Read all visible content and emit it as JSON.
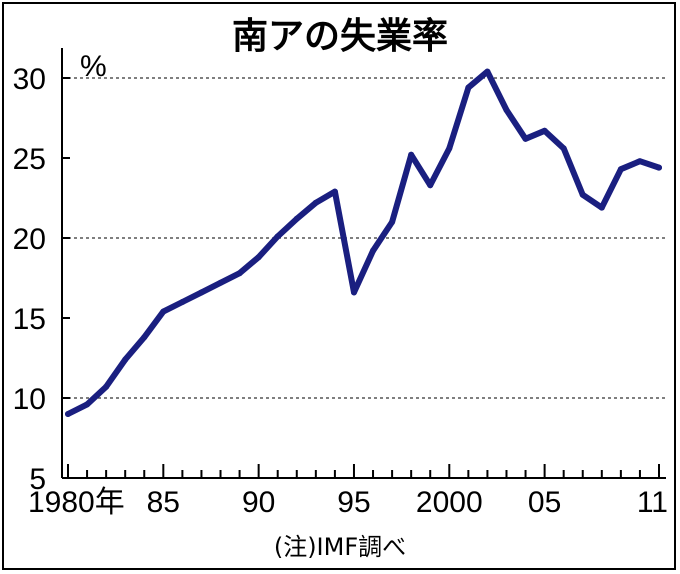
{
  "chart_data": {
    "type": "line",
    "title": "南アの失業率",
    "ylabel": "%",
    "source_note": "(注)IMF調べ",
    "ylim": [
      5,
      31
    ],
    "y_ticks": [
      5,
      10,
      15,
      20,
      25,
      30
    ],
    "y_gridlines": [
      10,
      20,
      30
    ],
    "x_tick_labels": [
      {
        "year": 1980,
        "label": "1980年"
      },
      {
        "year": 1985,
        "label": "85"
      },
      {
        "year": 1990,
        "label": "90"
      },
      {
        "year": 1995,
        "label": "95"
      },
      {
        "year": 2000,
        "label": "2000"
      },
      {
        "year": 2005,
        "label": "05"
      },
      {
        "year": 2011,
        "label": "11"
      }
    ],
    "x_minor_ticks": [
      1980,
      1981,
      1982,
      1983,
      1984,
      1985,
      1986,
      1987,
      1988,
      1989,
      1990,
      1991,
      1992,
      1993,
      1994,
      1995,
      1996,
      1997,
      1998,
      1999,
      2000,
      2001,
      2002,
      2003,
      2004,
      2005,
      2006,
      2007,
      2008,
      2009,
      2010,
      2011
    ],
    "line_color": "#1a1f80",
    "series": [
      {
        "x": [
          1980,
          1981,
          1982,
          1983,
          1984,
          1985,
          1986,
          1987,
          1988,
          1989,
          1990,
          1991,
          1992,
          1993,
          1994,
          1995,
          1996,
          1997,
          1998,
          1999,
          2000,
          2001,
          2002,
          2003,
          2004,
          2005,
          2006,
          2007,
          2008,
          2009,
          2010,
          2011
        ],
        "values": [
          9.0,
          9.6,
          10.7,
          12.4,
          13.8,
          15.4,
          16.0,
          16.6,
          17.2,
          17.8,
          18.8,
          20.1,
          21.2,
          22.2,
          22.9,
          16.6,
          19.2,
          21.0,
          25.2,
          23.3,
          25.6,
          29.4,
          30.4,
          28.0,
          26.2,
          26.7,
          25.6,
          22.7,
          21.9,
          24.3,
          24.8,
          24.4
        ]
      }
    ]
  }
}
